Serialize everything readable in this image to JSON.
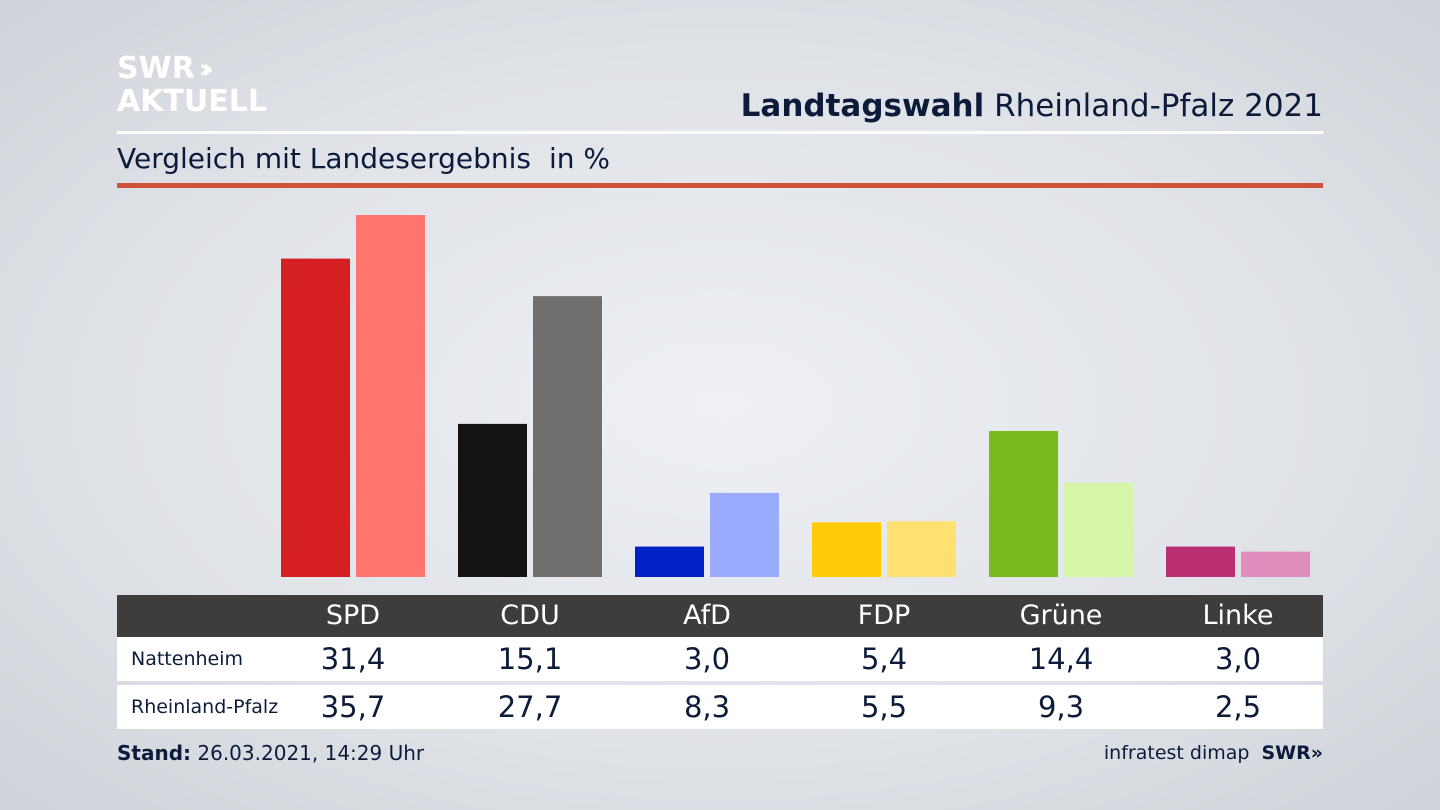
{
  "brand": {
    "line1": "SWR",
    "chevrons": "››",
    "line2": "AKTUELL"
  },
  "header": {
    "title_bold": "Landtagswahl",
    "title_rest": "Rheinland-Pfalz 2021"
  },
  "subheader": {
    "subtitle": "Vergleich mit Landesergebnis",
    "unit": "in %"
  },
  "footer": {
    "stand_label": "Stand:",
    "stand_value": "26.03.2021, 14:29 Uhr",
    "source": "infratest dimap",
    "swr": "SWR»"
  },
  "table": {
    "rows": [
      {
        "label": "Nattenheim"
      },
      {
        "label": "Rheinland-Pfalz"
      }
    ]
  },
  "chart_data": {
    "type": "bar",
    "categories": [
      "SPD",
      "CDU",
      "AfD",
      "FDP",
      "Grüne",
      "Linke"
    ],
    "series": [
      {
        "name": "Nattenheim",
        "values": [
          31.4,
          15.1,
          3.0,
          5.4,
          14.4,
          3.0
        ],
        "labels": [
          "31,4",
          "15,1",
          "3,0",
          "5,4",
          "14,4",
          "3,0"
        ],
        "colors": [
          "#d51f20",
          "#141414",
          "#0022c4",
          "#ffcb0a",
          "#77bb1f",
          "#bb2f72"
        ]
      },
      {
        "name": "Rheinland-Pfalz",
        "values": [
          35.7,
          27.7,
          8.3,
          5.5,
          9.3,
          2.5
        ],
        "labels": [
          "35,7",
          "27,7",
          "8,3",
          "5,5",
          "9,3",
          "2,5"
        ],
        "colors": [
          "#ff756e",
          "#706f6e",
          "#9aaafd",
          "#ffe070",
          "#d6f5a8",
          "#e08cbc"
        ]
      }
    ],
    "ylim": [
      0,
      36
    ],
    "legend": "table-below",
    "grid": false
  }
}
